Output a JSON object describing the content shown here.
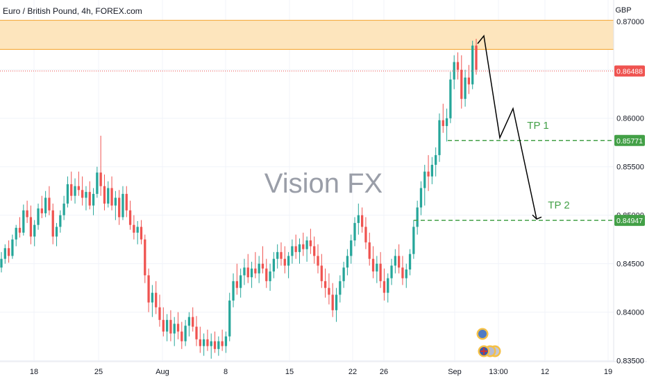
{
  "header": {
    "title": "Euro / British Pound, 4h, FOREX.com"
  },
  "watermark": "Vision FX",
  "colors": {
    "up": "#26a69a",
    "down": "#ef5350",
    "zone_fill": "#fde5bd",
    "zone_stroke": "#f6b04a",
    "tp_line": "#43a047",
    "current_price": "#ef5350",
    "projection": "#000000"
  },
  "chart_data": {
    "type": "candlestick",
    "title": "Euro / British Pound, 4h, FOREX.com",
    "y_axis_unit": "GBP",
    "ylim": [
      0.8349,
      0.8722
    ],
    "y_ticks": [
      "0.87000",
      "0.86500",
      "0.86000",
      "0.85500",
      "0.85000",
      "0.84500",
      "0.84000",
      "0.83500"
    ],
    "y_tick_values": [
      0.87,
      0.865,
      0.86,
      0.855,
      0.85,
      0.845,
      0.84,
      0.835
    ],
    "x_ticks": [
      "18",
      "25",
      "Aug",
      "8",
      "15",
      "22",
      "26",
      "Sep",
      "13:00",
      "12",
      "19"
    ],
    "current_price": {
      "label": "0.86488",
      "value": 0.86488
    },
    "resistance_zone": {
      "from": 0.8671,
      "to": 0.8701
    },
    "targets": [
      {
        "label": "TP 1",
        "price_label": "0.85771",
        "value": 0.85771
      },
      {
        "label": "TP 2",
        "price_label": "0.84947",
        "value": 0.84947
      }
    ],
    "projection_path": [
      0.8677,
      0.8685,
      0.858,
      0.861,
      0.8496
    ],
    "legend": "none",
    "grid": true,
    "candles": [
      [
        0.8446,
        0.8462,
        0.8441,
        0.8455
      ],
      [
        0.8455,
        0.847,
        0.845,
        0.8466
      ],
      [
        0.8466,
        0.8474,
        0.8451,
        0.8458
      ],
      [
        0.8458,
        0.848,
        0.8455,
        0.8475
      ],
      [
        0.8475,
        0.849,
        0.8468,
        0.8487
      ],
      [
        0.8487,
        0.8498,
        0.8477,
        0.8482
      ],
      [
        0.8482,
        0.8511,
        0.8479,
        0.8505
      ],
      [
        0.8505,
        0.8515,
        0.8492,
        0.8498
      ],
      [
        0.8498,
        0.851,
        0.847,
        0.8478
      ],
      [
        0.8478,
        0.8495,
        0.8468,
        0.849
      ],
      [
        0.849,
        0.8512,
        0.8485,
        0.8507
      ],
      [
        0.8507,
        0.852,
        0.8497,
        0.8502
      ],
      [
        0.8502,
        0.8525,
        0.8498,
        0.8518
      ],
      [
        0.8518,
        0.853,
        0.85,
        0.8505
      ],
      [
        0.8505,
        0.8512,
        0.847,
        0.8478
      ],
      [
        0.8478,
        0.8492,
        0.8468,
        0.8488
      ],
      [
        0.8488,
        0.8505,
        0.8482,
        0.85
      ],
      [
        0.85,
        0.852,
        0.8495,
        0.8512
      ],
      [
        0.8512,
        0.854,
        0.8508,
        0.8532
      ],
      [
        0.8532,
        0.8545,
        0.8515,
        0.852
      ],
      [
        0.852,
        0.8538,
        0.8512,
        0.853
      ],
      [
        0.853,
        0.8545,
        0.852,
        0.8526
      ],
      [
        0.8526,
        0.854,
        0.851,
        0.8518
      ],
      [
        0.8518,
        0.853,
        0.8505,
        0.8524
      ],
      [
        0.8524,
        0.8535,
        0.8506,
        0.851
      ],
      [
        0.851,
        0.8528,
        0.85,
        0.8522
      ],
      [
        0.8522,
        0.855,
        0.8518,
        0.8544
      ],
      [
        0.8544,
        0.8582,
        0.852,
        0.853
      ],
      [
        0.853,
        0.8542,
        0.8505,
        0.8512
      ],
      [
        0.8512,
        0.8535,
        0.8508,
        0.8528
      ],
      [
        0.8528,
        0.854,
        0.8505,
        0.851
      ],
      [
        0.851,
        0.8525,
        0.8495,
        0.8518
      ],
      [
        0.8518,
        0.8526,
        0.849,
        0.8498
      ],
      [
        0.8498,
        0.853,
        0.8495,
        0.8522
      ],
      [
        0.8522,
        0.853,
        0.8498,
        0.8505
      ],
      [
        0.8505,
        0.8515,
        0.8485,
        0.849
      ],
      [
        0.849,
        0.85,
        0.8475,
        0.8482
      ],
      [
        0.8482,
        0.8494,
        0.847,
        0.8488
      ],
      [
        0.8488,
        0.8495,
        0.847,
        0.8475
      ],
      [
        0.8475,
        0.848,
        0.843,
        0.8438
      ],
      [
        0.8438,
        0.8445,
        0.84,
        0.841
      ],
      [
        0.841,
        0.8428,
        0.8395,
        0.842
      ],
      [
        0.842,
        0.8432,
        0.8398,
        0.8405
      ],
      [
        0.8405,
        0.8418,
        0.8385,
        0.8392
      ],
      [
        0.8392,
        0.8405,
        0.8375,
        0.838
      ],
      [
        0.838,
        0.8398,
        0.837,
        0.8392
      ],
      [
        0.8392,
        0.8402,
        0.837,
        0.8378
      ],
      [
        0.8378,
        0.8395,
        0.8365,
        0.8388
      ],
      [
        0.8388,
        0.84,
        0.8372,
        0.838
      ],
      [
        0.838,
        0.839,
        0.8362,
        0.837
      ],
      [
        0.837,
        0.8392,
        0.8365,
        0.8386
      ],
      [
        0.8386,
        0.84,
        0.8375,
        0.8395
      ],
      [
        0.8395,
        0.8405,
        0.838,
        0.8385
      ],
      [
        0.8385,
        0.8396,
        0.8365,
        0.8372
      ],
      [
        0.8372,
        0.8385,
        0.8358,
        0.8365
      ],
      [
        0.8365,
        0.8378,
        0.8355,
        0.8372
      ],
      [
        0.8372,
        0.8382,
        0.836,
        0.8365
      ],
      [
        0.8365,
        0.8378,
        0.8352,
        0.837
      ],
      [
        0.837,
        0.838,
        0.8358,
        0.8362
      ],
      [
        0.8362,
        0.8375,
        0.8355,
        0.837
      ],
      [
        0.837,
        0.8382,
        0.836,
        0.8365
      ],
      [
        0.8365,
        0.838,
        0.8358,
        0.8375
      ],
      [
        0.8375,
        0.842,
        0.837,
        0.8412
      ],
      [
        0.8412,
        0.844,
        0.8405,
        0.8432
      ],
      [
        0.8432,
        0.845,
        0.8418,
        0.8425
      ],
      [
        0.8425,
        0.8445,
        0.8415,
        0.8438
      ],
      [
        0.8438,
        0.8455,
        0.8428,
        0.8446
      ],
      [
        0.8446,
        0.846,
        0.843,
        0.8436
      ],
      [
        0.8436,
        0.8452,
        0.8425,
        0.8445
      ],
      [
        0.8445,
        0.8462,
        0.8435,
        0.844
      ],
      [
        0.844,
        0.8458,
        0.843,
        0.845
      ],
      [
        0.845,
        0.8468,
        0.844,
        0.8445
      ],
      [
        0.8445,
        0.8455,
        0.8425,
        0.8432
      ],
      [
        0.8432,
        0.845,
        0.8422,
        0.8442
      ],
      [
        0.8442,
        0.8462,
        0.8435,
        0.8455
      ],
      [
        0.8455,
        0.847,
        0.8445,
        0.8462
      ],
      [
        0.8462,
        0.8472,
        0.8448,
        0.8455
      ],
      [
        0.8455,
        0.8468,
        0.844,
        0.8448
      ],
      [
        0.8448,
        0.8462,
        0.8435,
        0.8458
      ],
      [
        0.8458,
        0.8475,
        0.845,
        0.8468
      ],
      [
        0.8468,
        0.848,
        0.8455,
        0.8462
      ],
      [
        0.8462,
        0.8476,
        0.845,
        0.847
      ],
      [
        0.847,
        0.8482,
        0.8458,
        0.8465
      ],
      [
        0.8465,
        0.8478,
        0.8452,
        0.8474
      ],
      [
        0.8474,
        0.8486,
        0.846,
        0.8468
      ],
      [
        0.8468,
        0.8478,
        0.845,
        0.8458
      ],
      [
        0.8458,
        0.847,
        0.844,
        0.8448
      ],
      [
        0.8448,
        0.846,
        0.8425,
        0.8432
      ],
      [
        0.8432,
        0.8445,
        0.8415,
        0.8425
      ],
      [
        0.8425,
        0.844,
        0.8408,
        0.8418
      ],
      [
        0.8418,
        0.843,
        0.8395,
        0.8402
      ],
      [
        0.8402,
        0.8425,
        0.839,
        0.8418
      ],
      [
        0.8418,
        0.8438,
        0.841,
        0.8432
      ],
      [
        0.8432,
        0.8452,
        0.8425,
        0.8446
      ],
      [
        0.8446,
        0.8465,
        0.8438,
        0.8458
      ],
      [
        0.8458,
        0.848,
        0.845,
        0.8474
      ],
      [
        0.8474,
        0.8498,
        0.8468,
        0.8492
      ],
      [
        0.8492,
        0.8512,
        0.848,
        0.85
      ],
      [
        0.85,
        0.8508,
        0.8482,
        0.8488
      ],
      [
        0.8488,
        0.8498,
        0.8465,
        0.8472
      ],
      [
        0.8472,
        0.8482,
        0.8448,
        0.8455
      ],
      [
        0.8455,
        0.8468,
        0.8435,
        0.8442
      ],
      [
        0.8442,
        0.8458,
        0.843,
        0.845
      ],
      [
        0.845,
        0.8462,
        0.8425,
        0.8432
      ],
      [
        0.8432,
        0.8445,
        0.8412,
        0.842
      ],
      [
        0.842,
        0.844,
        0.841,
        0.8435
      ],
      [
        0.8435,
        0.8455,
        0.8428,
        0.8448
      ],
      [
        0.8448,
        0.8465,
        0.844,
        0.8458
      ],
      [
        0.8458,
        0.847,
        0.844,
        0.8446
      ],
      [
        0.8446,
        0.8458,
        0.8428,
        0.8435
      ],
      [
        0.8435,
        0.845,
        0.8425,
        0.8444
      ],
      [
        0.8444,
        0.8465,
        0.8438,
        0.846
      ],
      [
        0.846,
        0.8495,
        0.8455,
        0.8488
      ],
      [
        0.8488,
        0.8515,
        0.848,
        0.8508
      ],
      [
        0.8508,
        0.8535,
        0.85,
        0.8528
      ],
      [
        0.8528,
        0.8552,
        0.851,
        0.8545
      ],
      [
        0.8545,
        0.8562,
        0.8525,
        0.854
      ],
      [
        0.854,
        0.856,
        0.8532,
        0.8552
      ],
      [
        0.8552,
        0.857,
        0.854,
        0.8562
      ],
      [
        0.8562,
        0.8605,
        0.8555,
        0.8598
      ],
      [
        0.8598,
        0.8615,
        0.8585,
        0.8592
      ],
      [
        0.8592,
        0.861,
        0.8576,
        0.86
      ],
      [
        0.86,
        0.8648,
        0.8595,
        0.864
      ],
      [
        0.864,
        0.8665,
        0.863,
        0.8658
      ],
      [
        0.8658,
        0.8668,
        0.864,
        0.865
      ],
      [
        0.865,
        0.8665,
        0.861,
        0.862
      ],
      [
        0.862,
        0.865,
        0.8612,
        0.8642
      ],
      [
        0.8642,
        0.8655,
        0.8625,
        0.8635
      ],
      [
        0.8635,
        0.868,
        0.863,
        0.8675
      ],
      [
        0.8675,
        0.8682,
        0.8645,
        0.865
      ]
    ]
  }
}
